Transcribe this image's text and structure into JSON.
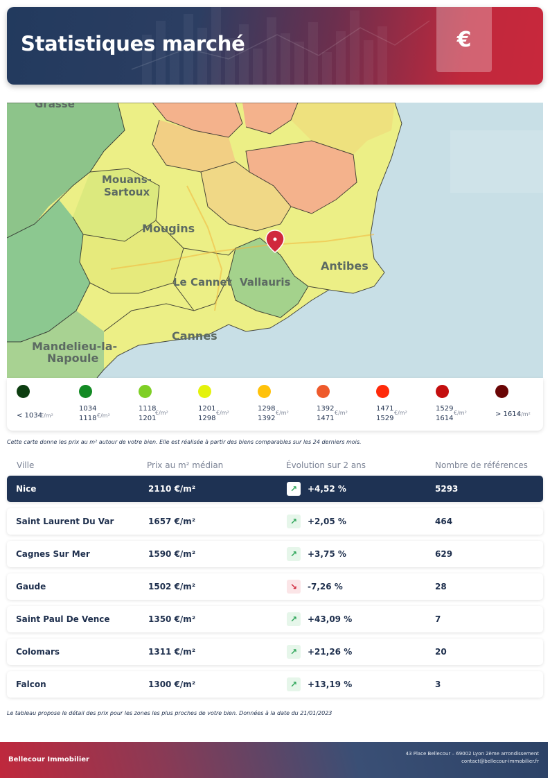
{
  "header": {
    "title": "Statistiques marché",
    "currency_symbol": "€"
  },
  "map": {
    "place_labels": [
      "Grasse",
      "Mouans-",
      "Sartoux",
      "Mougins",
      "Le Cannet",
      "Vallauris",
      "Antibes",
      "Cannes",
      "Mandelieu-la-",
      "Napoule"
    ],
    "marker_icon": "map-pin-icon"
  },
  "legend": {
    "unit": "€/m²",
    "items": [
      {
        "color": "#0c3d10",
        "label_line1": "< 1034",
        "label_line2": ""
      },
      {
        "color": "#138a24",
        "label_line1": "1034",
        "label_line2": "1118"
      },
      {
        "color": "#7fcf25",
        "label_line1": "1118",
        "label_line2": "1201"
      },
      {
        "color": "#e4f20c",
        "label_line1": "1201",
        "label_line2": "1298"
      },
      {
        "color": "#ffc20a",
        "label_line1": "1298",
        "label_line2": "1392"
      },
      {
        "color": "#ee5a2c",
        "label_line1": "1392",
        "label_line2": "1471"
      },
      {
        "color": "#ff2a0a",
        "label_line1": "1471",
        "label_line2": "1529"
      },
      {
        "color": "#c40f0f",
        "label_line1": "1529",
        "label_line2": "1614"
      },
      {
        "color": "#6a0505",
        "label_line1": "> 1614",
        "label_line2": ""
      }
    ]
  },
  "map_caption": "Cette carte donne les prix au m² autour de votre bien. Elle est réalisée à partir des biens comparables sur les 24 derniers mois.",
  "table": {
    "headers": {
      "city": "Ville",
      "price": "Prix au m² médian",
      "evolution": "Évolution sur 2 ans",
      "refs": "Nombre de références"
    },
    "rows": [
      {
        "city": "Nice",
        "price": "2110 €/m²",
        "trend": "up",
        "evolution": "+4,52 %",
        "refs": "5293"
      },
      {
        "city": "Saint Laurent Du Var",
        "price": "1657 €/m²",
        "trend": "up",
        "evolution": "+2,05 %",
        "refs": "464"
      },
      {
        "city": "Cagnes Sur Mer",
        "price": "1590 €/m²",
        "trend": "up",
        "evolution": "+3,75 %",
        "refs": "629"
      },
      {
        "city": "Gaude",
        "price": "1502 €/m²",
        "trend": "down",
        "evolution": "-7,26 %",
        "refs": "28"
      },
      {
        "city": "Saint Paul De Vence",
        "price": "1350 €/m²",
        "trend": "up",
        "evolution": "+43,09 %",
        "refs": "7"
      },
      {
        "city": "Colomars",
        "price": "1311 €/m²",
        "trend": "up",
        "evolution": "+21,26 %",
        "refs": "20"
      },
      {
        "city": "Falcon",
        "price": "1300 €/m²",
        "trend": "up",
        "evolution": "+13,19 %",
        "refs": "3"
      }
    ],
    "arrow_up": "↗",
    "arrow_down": "↘"
  },
  "table_caption": "Le tableau propose le détail des prix pour les zones les plus proches de votre bien. Données à la date du 21/01/2023",
  "footer": {
    "brand": "Bellecour Immobilier",
    "address": "43 Place Bellecour – 69002 Lyon 2ème arrondissement",
    "email": "contact@bellecour-immobilier.fr"
  }
}
